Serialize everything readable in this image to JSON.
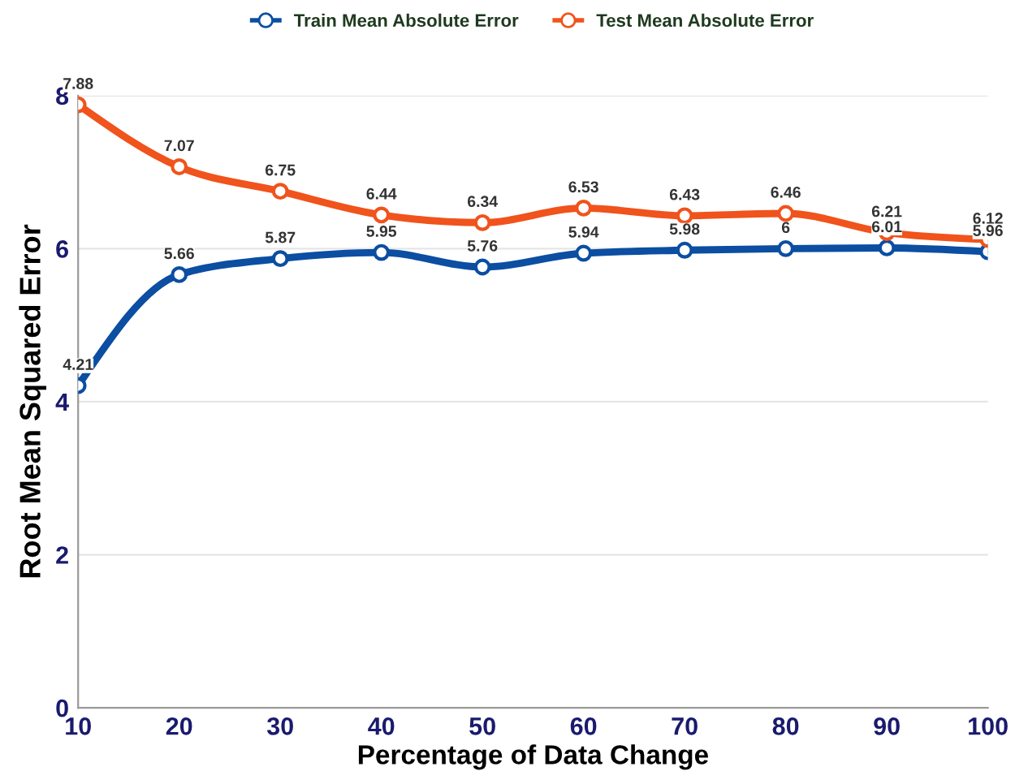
{
  "chart_data": {
    "type": "line",
    "xlabel": "Percentage of Data Change",
    "ylabel": "Root Mean Squared Error",
    "x": [
      10,
      20,
      30,
      40,
      50,
      60,
      70,
      80,
      90,
      100
    ],
    "series": [
      {
        "name": "Train Mean Absolute Error",
        "color": "#0b4ea2",
        "values": [
          4.21,
          5.66,
          5.87,
          5.95,
          5.76,
          5.94,
          5.98,
          6,
          6.01,
          5.96
        ]
      },
      {
        "name": "Test Mean Absolute Error",
        "color": "#f0531c",
        "values": [
          7.88,
          7.07,
          6.75,
          6.44,
          6.34,
          6.53,
          6.43,
          6.46,
          6.21,
          6.12
        ]
      }
    ],
    "xlim": [
      10,
      100
    ],
    "xticks": [
      10,
      20,
      30,
      40,
      50,
      60,
      70,
      80,
      90,
      100
    ],
    "ylim": [
      0,
      8
    ],
    "yticks": [
      0,
      2,
      4,
      6,
      8
    ],
    "grid": "y",
    "legend": "top",
    "marker": "circle",
    "line_style": "solid",
    "data_labels": true
  }
}
